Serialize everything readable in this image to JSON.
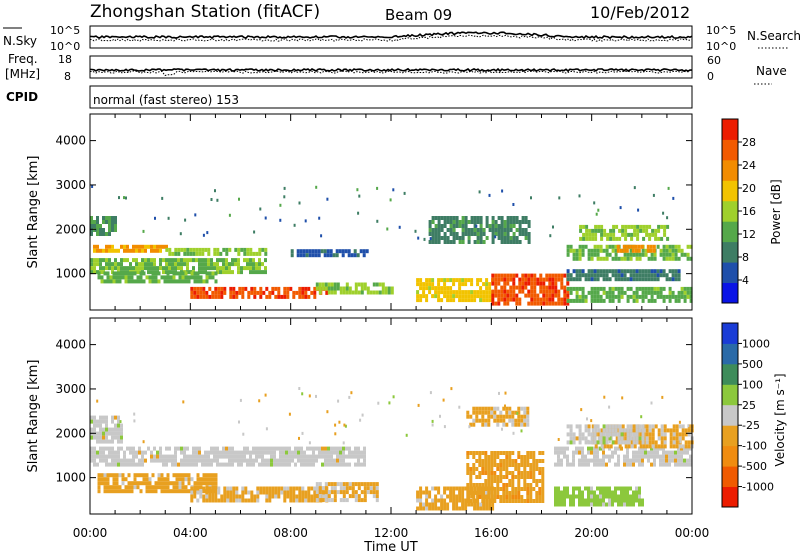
{
  "title": {
    "station": "Zhongshan Station (fitACF)",
    "beam": "Beam 09",
    "date": "10/Feb/2012"
  },
  "strips": {
    "nsky": {
      "label": "N.Sky",
      "ticks": [
        "10^5",
        "10^0"
      ]
    },
    "nsearch": {
      "label": "N.Search",
      "ticks": [
        "10^5",
        "10^0"
      ]
    },
    "freq": {
      "label_line1": "Freq.",
      "label_line2": "[MHz]",
      "ticks": [
        "18",
        "8"
      ]
    },
    "nave": {
      "label": "Nave",
      "ticks": [
        "60",
        "0"
      ]
    },
    "cpid": {
      "label": "CPID",
      "value": "normal (fast stereo) 153"
    }
  },
  "colors": {
    "power": [
      "#0a14e6",
      "#1f4faa",
      "#3e7d64",
      "#55a84a",
      "#9fd02c",
      "#f2c300",
      "#f28c00",
      "#f25a00",
      "#ec1c00"
    ],
    "velocity": [
      "#ec1c00",
      "#f05a00",
      "#f08c10",
      "#e8a020",
      "#c8c8c8",
      "#8cc83c",
      "#3e8c5a",
      "#2a6aa8",
      "#1a3cd6"
    ],
    "gray": "#c8c8c8"
  },
  "chart_data": [
    {
      "type": "heatmap",
      "name": "power",
      "ylabel": "Slant Range [km]",
      "yticks": [
        "1000",
        "2000",
        "3000",
        "4000"
      ],
      "xticks": [
        "00:00",
        "04:00",
        "08:00",
        "12:00",
        "16:00",
        "20:00",
        "00:00"
      ],
      "ylim": [
        180,
        4600
      ],
      "xlim": [
        0,
        24
      ],
      "colorbar": {
        "label": "Power [dB]",
        "ticks": [
          "28",
          "24",
          "20",
          "16",
          "12",
          "8",
          "4"
        ],
        "range": [
          0,
          30
        ]
      },
      "bands": [
        {
          "t": [
            0.0,
            3.0
          ],
          "r": [
            1500,
            1650
          ],
          "value": 20
        },
        {
          "t": [
            3.0,
            7.0
          ],
          "r": [
            1420,
            1580
          ],
          "value": 14
        },
        {
          "t": [
            0.0,
            7.0
          ],
          "r": [
            1050,
            1350
          ],
          "value": 13
        },
        {
          "t": [
            0.3,
            5.0
          ],
          "r": [
            800,
            1050
          ],
          "value": 12
        },
        {
          "t": [
            4.0,
            9.5
          ],
          "r": [
            450,
            700
          ],
          "value": 26
        },
        {
          "t": [
            9.0,
            12.0
          ],
          "r": [
            550,
            800
          ],
          "value": 14
        },
        {
          "t": [
            8.0,
            11.0
          ],
          "r": [
            1400,
            1550
          ],
          "value": 6
        },
        {
          "t": [
            13.0,
            16.0
          ],
          "r": [
            400,
            900
          ],
          "value": 18
        },
        {
          "t": [
            16.0,
            19.0
          ],
          "r": [
            350,
            1000
          ],
          "value": 26
        },
        {
          "t": [
            19.0,
            24.0
          ],
          "r": [
            400,
            700
          ],
          "value": 12
        },
        {
          "t": [
            19.0,
            23.5
          ],
          "r": [
            850,
            1100
          ],
          "value": 8
        },
        {
          "t": [
            19.0,
            24.0
          ],
          "r": [
            1350,
            1650
          ],
          "value": 13
        },
        {
          "t": [
            21.0,
            22.5
          ],
          "r": [
            1500,
            1650
          ],
          "value": 22
        },
        {
          "t": [
            19.5,
            23.0
          ],
          "r": [
            1750,
            2100
          ],
          "value": 14
        },
        {
          "t": [
            13.5,
            17.5
          ],
          "r": [
            1700,
            2300
          ],
          "value": 9
        },
        {
          "t": [
            0.0,
            1.0
          ],
          "r": [
            1900,
            2300
          ],
          "value": 10
        }
      ]
    },
    {
      "type": "heatmap",
      "name": "velocity",
      "ylabel": "Slant Range [km]",
      "xlabel": "Time UT",
      "yticks": [
        "1000",
        "2000",
        "3000",
        "4000"
      ],
      "xticks": [
        "00:00",
        "04:00",
        "08:00",
        "12:00",
        "16:00",
        "20:00",
        "00:00"
      ],
      "ylim": [
        180,
        4600
      ],
      "xlim": [
        0,
        24
      ],
      "colorbar": {
        "label": "Velocity [m s⁻¹]",
        "ticks": [
          "1000",
          "500",
          "100",
          "25",
          "-25",
          "-100",
          "-500",
          "-1000"
        ],
        "range": [
          -1200,
          1200
        ]
      },
      "bands": [
        {
          "t": [
            0.0,
            11.0
          ],
          "r": [
            1300,
            1700
          ],
          "value": 0
        },
        {
          "t": [
            0.0,
            1.2
          ],
          "r": [
            1800,
            2400
          ],
          "value": 0
        },
        {
          "t": [
            0.3,
            5.0
          ],
          "r": [
            700,
            1100
          ],
          "value": -250
        },
        {
          "t": [
            4.0,
            9.5
          ],
          "r": [
            450,
            800
          ],
          "value": -220
        },
        {
          "t": [
            9.0,
            11.5
          ],
          "r": [
            500,
            900
          ],
          "value": -180
        },
        {
          "t": [
            13.0,
            16.0
          ],
          "r": [
            300,
            800
          ],
          "value": -250
        },
        {
          "t": [
            15.0,
            18.0
          ],
          "r": [
            500,
            1600
          ],
          "value": -300
        },
        {
          "t": [
            18.5,
            22.0
          ],
          "r": [
            400,
            800
          ],
          "value": 250
        },
        {
          "t": [
            18.5,
            24.0
          ],
          "r": [
            1300,
            1700
          ],
          "value": 0
        },
        {
          "t": [
            20.0,
            24.0
          ],
          "r": [
            1700,
            2200
          ],
          "value": -200
        },
        {
          "t": [
            15.0,
            17.5
          ],
          "r": [
            2200,
            2600
          ],
          "value": -200
        },
        {
          "t": [
            19.0,
            22.0
          ],
          "r": [
            1800,
            2200
          ],
          "value": 0
        }
      ]
    }
  ]
}
